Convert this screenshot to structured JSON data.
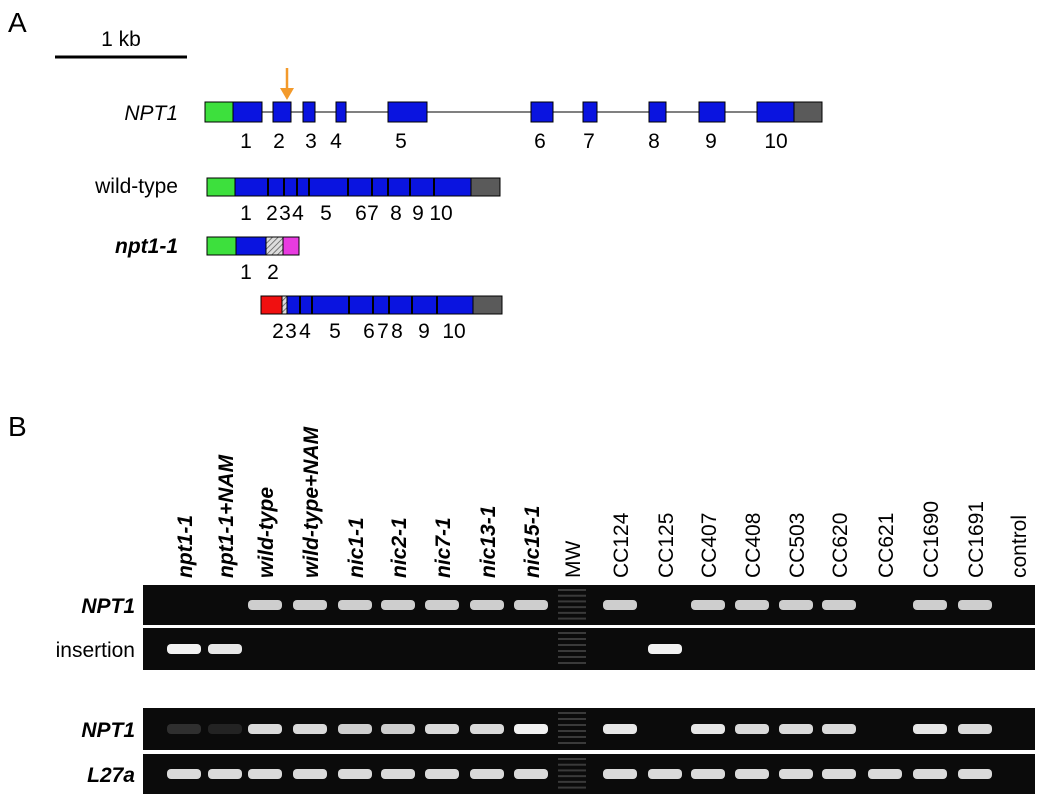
{
  "panel_a": {
    "label": "A",
    "scale_bar": "1 kb",
    "gene": {
      "name": "NPT1",
      "exons": [
        "1",
        "2",
        "3",
        "4",
        "5",
        "6",
        "7",
        "8",
        "9",
        "10"
      ]
    },
    "wild_type": {
      "name": "wild-type",
      "exons": [
        "1",
        "2",
        "3",
        "4",
        "5",
        "6",
        "7",
        "8",
        "9",
        "10"
      ]
    },
    "mutant": {
      "name": "npt1-1",
      "exons": [
        "1",
        "2"
      ]
    },
    "mutant_second": {
      "exons": [
        "2",
        "3",
        "4",
        "5",
        "6",
        "7",
        "8",
        "9",
        "10"
      ]
    }
  },
  "panel_b": {
    "label": "B",
    "lanes": [
      "npt1-1",
      "npt1-1+NAM",
      "wild-type",
      "wild-type+NAM",
      "nic1-1",
      "nic2-1",
      "nic7-1",
      "nic13-1",
      "nic15-1",
      "MW",
      "CC124",
      "CC125",
      "CC407",
      "CC408",
      "CC503",
      "CC620",
      "CC621",
      "CC1690",
      "CC1691",
      "control"
    ],
    "rows": [
      "NPT1",
      "insertion",
      "NPT1",
      "L27a"
    ]
  }
}
